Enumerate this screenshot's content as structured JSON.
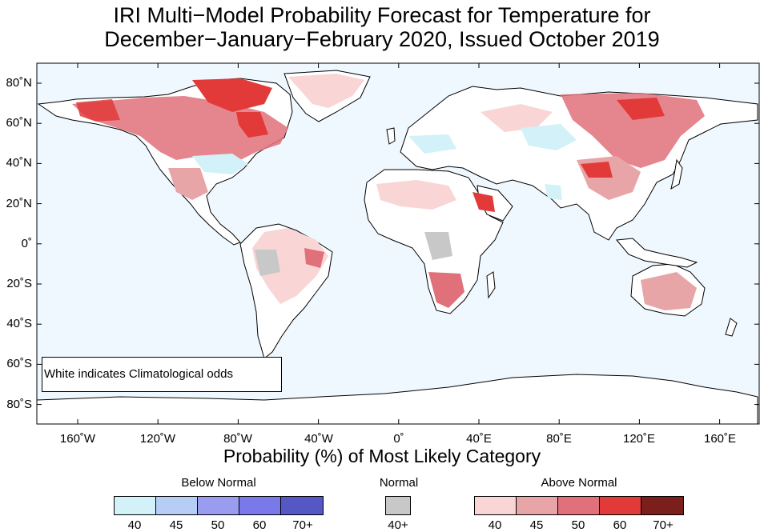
{
  "title_line_1": "IRI Multi−Model Probability Forecast for Temperature for",
  "title_line_2": "December−January−February 2020, Issued October 2019",
  "y_tick_labels": [
    "80˚N",
    "60˚N",
    "40˚N",
    "20˚N",
    "0˚",
    "20˚S",
    "40˚S",
    "60˚S",
    "80˚S"
  ],
  "x_tick_labels": [
    "160˚W",
    "120˚W",
    "80˚W",
    "40˚W",
    "0˚",
    "40˚E",
    "80˚E",
    "120˚E",
    "160˚E"
  ],
  "x_axis_title": "Probability (%) of Most Likely Category",
  "note": "White indicates Climatological odds",
  "legend": {
    "below": {
      "title": "Below Normal",
      "colors": [
        "#d3f1f8",
        "#b6cdf6",
        "#9a9cf0",
        "#7a79ea",
        "#5558c4"
      ],
      "labels": [
        "40",
        "45",
        "50",
        "60",
        "70+"
      ]
    },
    "normal": {
      "title": "Normal",
      "colors": [
        "#c8c8c8"
      ],
      "labels": [
        "40+"
      ]
    },
    "above": {
      "title": "Above Normal",
      "colors": [
        "#f9d5d5",
        "#e8a5a7",
        "#e0707a",
        "#e13a39",
        "#7b1f1c"
      ],
      "labels": [
        "40",
        "45",
        "50",
        "60",
        "70+"
      ]
    }
  },
  "colors": {
    "ocean": "#f0f8ff",
    "land": "#ffffff",
    "coastline": "#000000",
    "border": "#888888"
  }
}
